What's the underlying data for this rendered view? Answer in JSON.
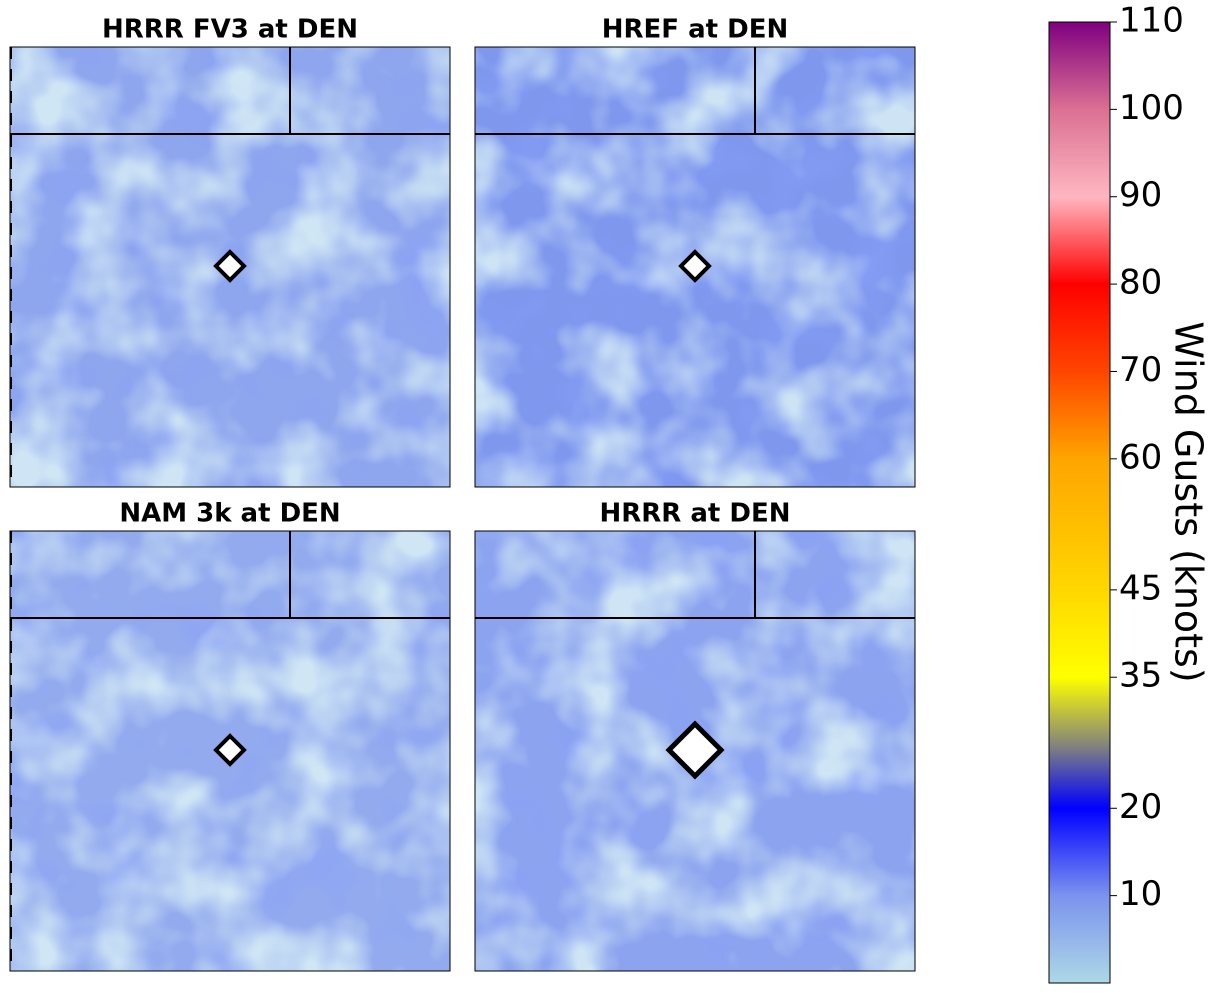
{
  "panels": [
    {
      "title": "HRRR FV3 at DEN"
    },
    {
      "title": "HREF at DEN"
    },
    {
      "title": "NAM 3k at DEN"
    },
    {
      "title": "HRRR at DEN"
    }
  ],
  "colorbar": {
    "label": "Wind Gusts (knots)",
    "lim": [
      0,
      110
    ],
    "ticks": [
      10,
      20,
      35,
      45,
      60,
      70,
      80,
      90,
      100,
      110
    ],
    "colormap": [
      {
        "value": 0,
        "color": "#add8e6"
      },
      {
        "value": 10,
        "color": "#7b93ee"
      },
      {
        "value": 20,
        "color": "#0000ff"
      },
      {
        "value": 27,
        "color": "#808080"
      },
      {
        "value": 35,
        "color": "#ffff00"
      },
      {
        "value": 45,
        "color": "#ffd700"
      },
      {
        "value": 60,
        "color": "#ffa500"
      },
      {
        "value": 70,
        "color": "#ff4500"
      },
      {
        "value": 80,
        "color": "#ff0000"
      },
      {
        "value": 90,
        "color": "#ffb6c1"
      },
      {
        "value": 100,
        "color": "#db7093"
      },
      {
        "value": 110,
        "color": "#800080"
      }
    ]
  }
}
